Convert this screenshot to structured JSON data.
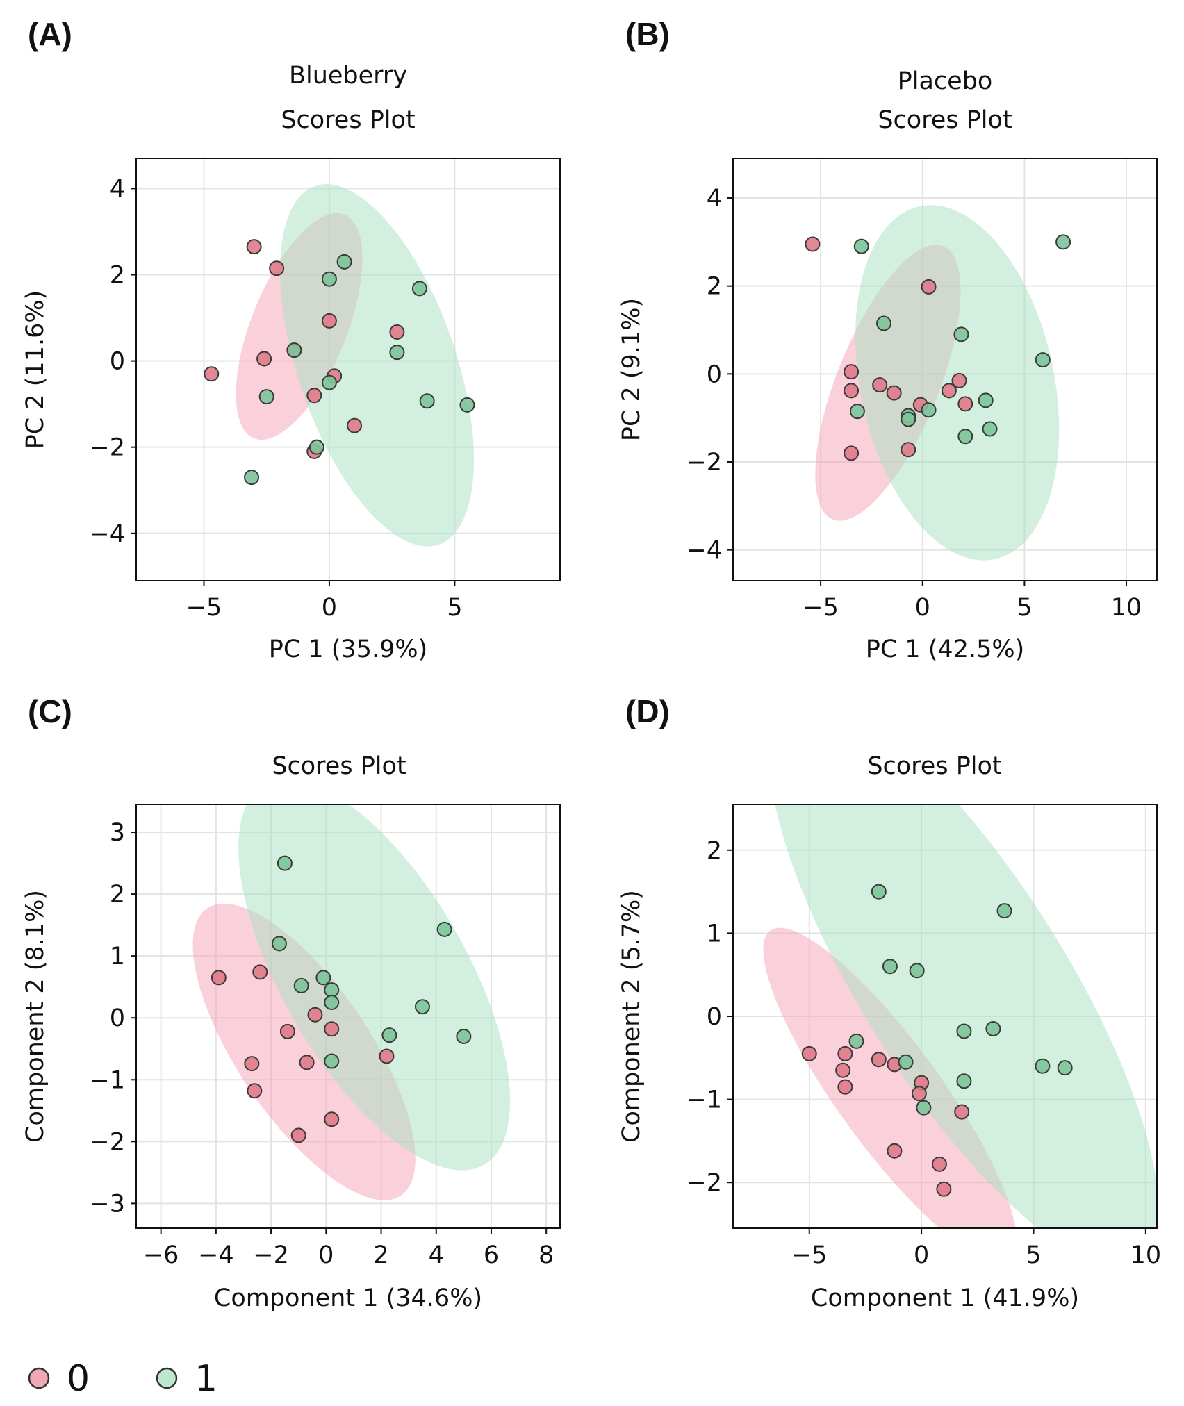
{
  "colors": {
    "group0_fill": "#f5a3b8",
    "group0_point": "#e07a8a",
    "group1_fill": "#a8e0c0",
    "group1_point": "#7cc49a",
    "point_edge": "#3a3a3a",
    "grid": "#e3e3e3"
  },
  "legend": [
    {
      "label": "0",
      "color": "#f2a7b5"
    },
    {
      "label": "1",
      "color": "#bfe6cf"
    }
  ],
  "chart_data": [
    {
      "panel": "(A)",
      "type": "scatter",
      "title_lines": [
        "Blueberry",
        "Scores Plot"
      ],
      "xlabel": "PC 1 (35.9%)",
      "ylabel": "PC 2 (11.6%)",
      "xlim": [
        -7.7,
        9.2
      ],
      "ylim": [
        -5.1,
        4.7
      ],
      "xticks": [
        -5,
        0,
        5
      ],
      "xtick_labels": [
        "−5",
        "0",
        "5"
      ],
      "yticks": [
        -4,
        -2,
        0,
        2,
        4
      ],
      "ytick_labels": [
        "−4",
        "−2",
        "0",
        "2",
        "4"
      ],
      "grid": true,
      "ellipses": [
        {
          "group": "0",
          "cx": -1.2,
          "cy": 0.8,
          "rx": 3.8,
          "ry": 5.6,
          "angle": 22
        },
        {
          "group": "1",
          "cx": 1.9,
          "cy": -0.1,
          "rx": 6.3,
          "ry": 8.8,
          "angle": -19
        }
      ],
      "series": [
        {
          "name": "0",
          "points": [
            [
              -3.0,
              2.65
            ],
            [
              -2.1,
              2.15
            ],
            [
              -4.7,
              -0.3
            ],
            [
              -2.6,
              0.05
            ],
            [
              -1.4,
              0.25
            ],
            [
              0.0,
              0.93
            ],
            [
              2.7,
              0.67
            ],
            [
              0.2,
              -0.35
            ],
            [
              -0.6,
              -0.8
            ],
            [
              1.0,
              -1.5
            ],
            [
              -0.6,
              -2.1
            ]
          ]
        },
        {
          "name": "1",
          "points": [
            [
              0.6,
              2.3
            ],
            [
              0.0,
              1.9
            ],
            [
              3.6,
              1.68
            ],
            [
              2.7,
              0.2
            ],
            [
              -1.4,
              0.25
            ],
            [
              0.0,
              -0.5
            ],
            [
              -2.5,
              -0.83
            ],
            [
              3.9,
              -0.93
            ],
            [
              5.5,
              -1.02
            ],
            [
              -0.5,
              -2.0
            ],
            [
              -3.1,
              -2.7
            ]
          ]
        }
      ]
    },
    {
      "panel": "(B)",
      "type": "scatter",
      "title_lines": [
        "Placebo",
        "Scores Plot"
      ],
      "xlabel": "PC 1 (42.5%)",
      "ylabel": "PC 2 (9.1%)",
      "xlim": [
        -9.3,
        11.5
      ],
      "ylim": [
        -4.7,
        4.9
      ],
      "xticks": [
        -5,
        0,
        5,
        10
      ],
      "xtick_labels": [
        "−5",
        "0",
        "5",
        "10"
      ],
      "yticks": [
        -4,
        -2,
        0,
        2,
        4
      ],
      "ytick_labels": [
        "−4",
        "−2",
        "0",
        "2",
        "4"
      ],
      "grid": true,
      "ellipses": [
        {
          "group": "0",
          "cx": -1.7,
          "cy": -0.2,
          "rx": 5.0,
          "ry": 6.7,
          "angle": 22
        },
        {
          "group": "1",
          "cx": 1.7,
          "cy": -0.2,
          "rx": 9.5,
          "ry": 8.2,
          "angle": -12
        }
      ],
      "series": [
        {
          "name": "0",
          "points": [
            [
              -5.4,
              2.95
            ],
            [
              0.3,
              1.98
            ],
            [
              -3.5,
              0.05
            ],
            [
              -3.5,
              -0.38
            ],
            [
              -2.1,
              -0.25
            ],
            [
              -1.4,
              -0.43
            ],
            [
              -0.1,
              -0.7
            ],
            [
              1.3,
              -0.38
            ],
            [
              1.8,
              -0.15
            ],
            [
              2.1,
              -0.68
            ],
            [
              -0.7,
              -1.72
            ],
            [
              -3.5,
              -1.8
            ]
          ]
        },
        {
          "name": "1",
          "points": [
            [
              -3.0,
              2.9
            ],
            [
              6.9,
              3.0
            ],
            [
              -1.9,
              1.15
            ],
            [
              1.9,
              0.9
            ],
            [
              5.9,
              0.32
            ],
            [
              -3.2,
              -0.85
            ],
            [
              -0.7,
              -0.95
            ],
            [
              -0.7,
              -1.03
            ],
            [
              0.3,
              -0.82
            ],
            [
              3.1,
              -0.6
            ],
            [
              2.1,
              -1.42
            ],
            [
              3.3,
              -1.25
            ]
          ]
        }
      ]
    },
    {
      "panel": "(C)",
      "type": "scatter",
      "title_lines": [
        "Scores Plot"
      ],
      "xlabel": "Component 1 (34.6%)",
      "ylabel": "Component 2 (8.1%)",
      "xlim": [
        -6.9,
        8.5
      ],
      "ylim": [
        -3.4,
        3.45
      ],
      "xticks": [
        -6,
        -4,
        -2,
        0,
        2,
        4,
        6,
        8
      ],
      "xtick_labels": [
        "−6",
        "−4",
        "−2",
        "0",
        "2",
        "4",
        "6",
        "8"
      ],
      "yticks": [
        -3,
        -2,
        -1,
        0,
        1,
        2,
        3
      ],
      "ytick_labels": [
        "−3",
        "−2",
        "−1",
        "0",
        "1",
        "2",
        "3"
      ],
      "grid": true,
      "ellipses": [
        {
          "group": "0",
          "cx": -0.8,
          "cy": -0.55,
          "rx": 4.8,
          "ry": 5.6,
          "angle": -34
        },
        {
          "group": "1",
          "cx": 1.75,
          "cy": 0.7,
          "rx": 6.7,
          "ry": 7.1,
          "angle": -30
        }
      ],
      "series": [
        {
          "name": "0",
          "points": [
            [
              -3.9,
              0.65
            ],
            [
              -2.4,
              0.74
            ],
            [
              -0.4,
              0.05
            ],
            [
              0.2,
              -0.18
            ],
            [
              -1.4,
              -0.22
            ],
            [
              -0.7,
              -0.72
            ],
            [
              2.2,
              -0.62
            ],
            [
              -2.7,
              -0.74
            ],
            [
              -2.6,
              -1.18
            ],
            [
              0.2,
              -1.64
            ],
            [
              -1.0,
              -1.9
            ]
          ]
        },
        {
          "name": "1",
          "points": [
            [
              -1.5,
              2.5
            ],
            [
              4.3,
              1.43
            ],
            [
              -1.7,
              1.2
            ],
            [
              -0.9,
              0.52
            ],
            [
              -0.1,
              0.65
            ],
            [
              0.2,
              0.45
            ],
            [
              0.2,
              0.25
            ],
            [
              3.5,
              0.18
            ],
            [
              2.3,
              -0.28
            ],
            [
              5.0,
              -0.3
            ],
            [
              0.2,
              -0.7
            ]
          ]
        }
      ]
    },
    {
      "panel": "(D)",
      "type": "scatter",
      "title_lines": [
        "Scores Plot"
      ],
      "xlabel": "Component 1 (41.9%)",
      "ylabel": "Component 2 (5.7%)",
      "xlim": [
        -8.4,
        10.5
      ],
      "ylim": [
        -2.55,
        2.55
      ],
      "xticks": [
        -5,
        0,
        5,
        10
      ],
      "xtick_labels": [
        "−5",
        "0",
        "5",
        "10"
      ],
      "yticks": [
        -2,
        -1,
        0,
        1,
        2
      ],
      "ytick_labels": [
        "−2",
        "−1",
        "0",
        "1",
        "2"
      ],
      "grid": true,
      "ellipses": [
        {
          "group": "0",
          "cx": -1.4,
          "cy": -0.95,
          "rx": 4.6,
          "ry": 4.9,
          "angle": -36
        },
        {
          "group": "1",
          "cx": 1.9,
          "cy": 0.4,
          "rx": 9.1,
          "ry": 7.9,
          "angle": -32
        }
      ],
      "series": [
        {
          "name": "0",
          "points": [
            [
              -5.0,
              -0.45
            ],
            [
              -3.4,
              -0.45
            ],
            [
              -3.5,
              -0.65
            ],
            [
              -3.4,
              -0.85
            ],
            [
              -1.9,
              -0.52
            ],
            [
              -1.2,
              -0.58
            ],
            [
              0.0,
              -0.8
            ],
            [
              -0.1,
              -0.93
            ],
            [
              1.8,
              -1.15
            ],
            [
              -1.2,
              -1.62
            ],
            [
              0.8,
              -1.78
            ],
            [
              1.0,
              -2.08
            ]
          ]
        },
        {
          "name": "1",
          "points": [
            [
              -1.9,
              1.5
            ],
            [
              3.7,
              1.27
            ],
            [
              -1.4,
              0.6
            ],
            [
              -0.2,
              0.55
            ],
            [
              3.2,
              -0.15
            ],
            [
              1.9,
              -0.18
            ],
            [
              -2.9,
              -0.3
            ],
            [
              -0.7,
              -0.55
            ],
            [
              5.4,
              -0.6
            ],
            [
              6.4,
              -0.62
            ],
            [
              1.9,
              -0.78
            ],
            [
              0.1,
              -1.1
            ]
          ]
        }
      ]
    }
  ]
}
